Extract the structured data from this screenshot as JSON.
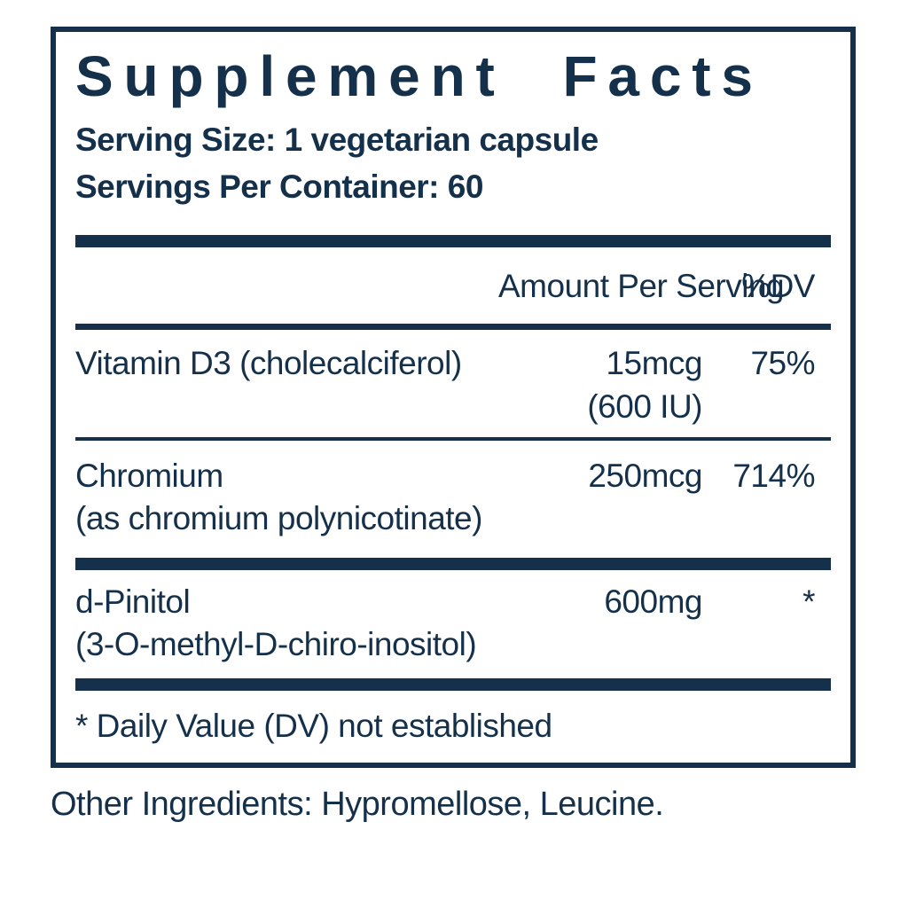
{
  "colors": {
    "navy": "#14304a",
    "background": "#ffffff"
  },
  "panel": {
    "title": "Supplement Facts",
    "serving_size": "Serving Size: 1 vegetarian capsule",
    "servings_per_container": "Servings Per Container: 60",
    "columns": {
      "amount": "Amount Per Serving",
      "dv": "%DV"
    },
    "rows": [
      {
        "name": "Vitamin D3 (cholecalciferol)",
        "amount": "15mcg",
        "amount2": "(600 IU)",
        "dv": "75%"
      },
      {
        "name": "Chromium",
        "name2": "(as chromium polynicotinate)",
        "amount": "250mcg",
        "dv": "714%"
      },
      {
        "name": "d-Pinitol",
        "name2": "(3-O-methyl-D-chiro-inositol)",
        "amount": "600mg",
        "dv": "*"
      }
    ],
    "footnote": "* Daily Value (DV) not established"
  },
  "other_ingredients": "Other Ingredients: Hypromellose, Leucine."
}
